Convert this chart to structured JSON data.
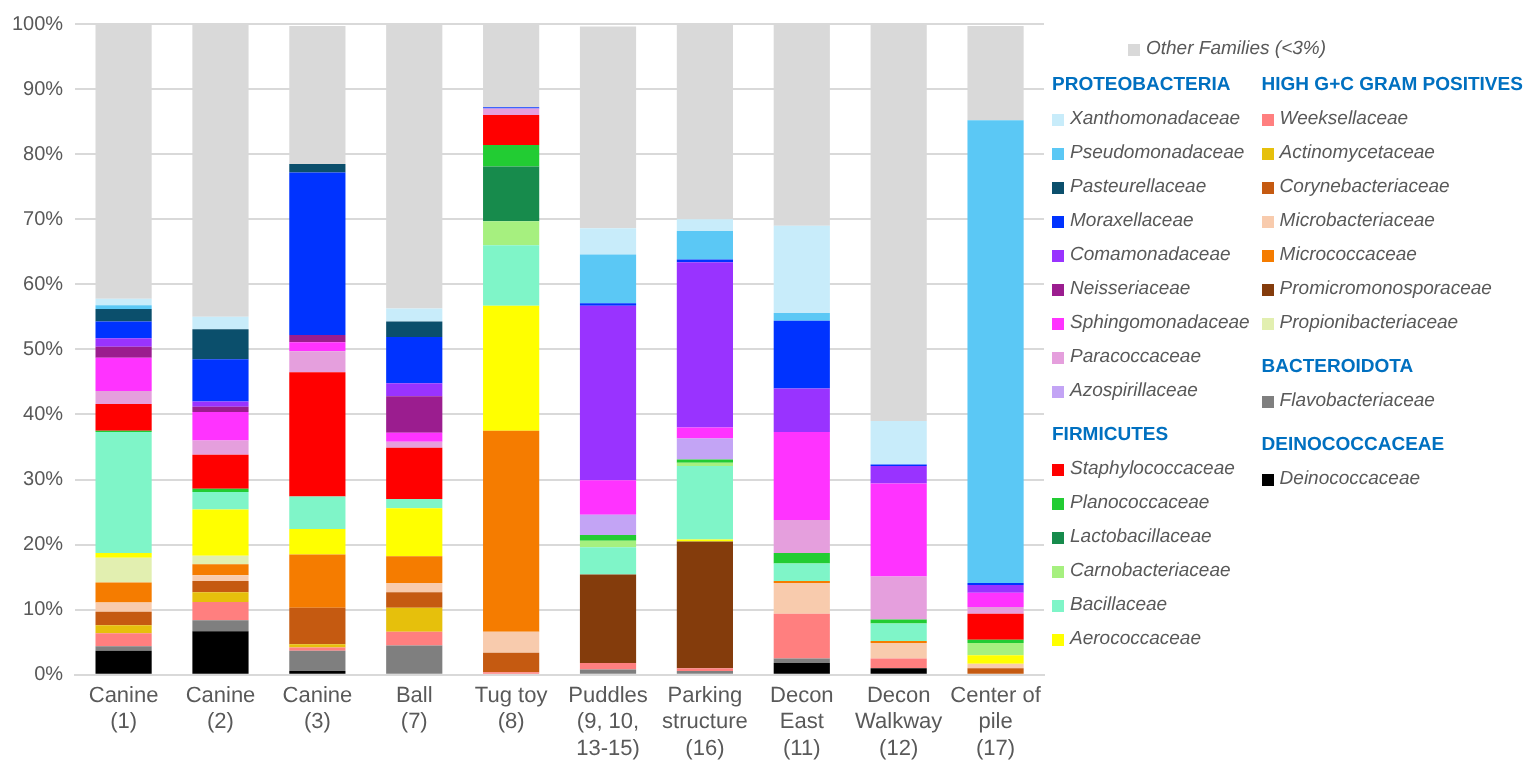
{
  "chart_data": {
    "type": "bar",
    "stacked": true,
    "categories": [
      "Canine\n(1)",
      "Canine\n(2)",
      "Canine\n(3)",
      "Ball\n(7)",
      "Tug toy\n(8)",
      "Puddles\n(9, 10,\n13-15)",
      "Parking\nstructure\n(16)",
      "Decon\nEast\n(11)",
      "Decon\nWalkway\n(12)",
      "Center of\npile\n(17)"
    ],
    "ylim": [
      0,
      100
    ],
    "yticks": [
      {
        "value": 0,
        "label": "0%"
      },
      {
        "value": 10,
        "label": "10%"
      },
      {
        "value": 20,
        "label": "20%"
      },
      {
        "value": 30,
        "label": "30%"
      },
      {
        "value": 40,
        "label": "40%"
      },
      {
        "value": 50,
        "label": "50%"
      },
      {
        "value": 60,
        "label": "60%"
      },
      {
        "value": 70,
        "label": "70%"
      },
      {
        "value": 80,
        "label": "80%"
      },
      {
        "value": 90,
        "label": "90%"
      },
      {
        "value": 100,
        "label": "100%"
      }
    ],
    "grid": "y",
    "legend": "right",
    "annotations": [
      "PROTEOBACTERIA",
      "HIGH G+C GRAM POSITIVES",
      "FIRMICUTES",
      "BACTEROIDOTA",
      "DEINOCOCCACEAE"
    ],
    "series": [
      {
        "name": "Deinococcaceae",
        "color": "#000000",
        "values": [
          3.7,
          6.7,
          0.6,
          0,
          0,
          0,
          0,
          1.8,
          1.0,
          0
        ]
      },
      {
        "name": "Flavobacteriaceae",
        "color": "#7f7f7f",
        "values": [
          0.7,
          1.7,
          3.1,
          4.5,
          0,
          0.8,
          0.6,
          0.7,
          0,
          0
        ]
      },
      {
        "name": "Weeksellaceae",
        "color": "#ff7f7f",
        "values": [
          2.0,
          2.8,
          0.5,
          2.1,
          0.4,
          1.0,
          0.4,
          6.9,
          1.5,
          0
        ]
      },
      {
        "name": "Actinomycetaceae",
        "color": "#e6c00c",
        "values": [
          1.2,
          1.5,
          0.5,
          3.7,
          0,
          0,
          0,
          0,
          0,
          0
        ]
      },
      {
        "name": "Corynebacteriaceae",
        "color": "#c55a11",
        "values": [
          2.1,
          1.7,
          5.6,
          2.4,
          3.0,
          0,
          0,
          0,
          0,
          1.0
        ]
      },
      {
        "name": "Microbacteriaceae",
        "color": "#f8cbad",
        "values": [
          1.4,
          0.9,
          0,
          1.4,
          3.2,
          null,
          0,
          4.7,
          2.4,
          0.7
        ]
      },
      {
        "name": "Micrococcaceae",
        "color": "#f57c00",
        "values": [
          3.1,
          1.7,
          8.2,
          4.1,
          30.9,
          0,
          0,
          0.3,
          0.3,
          0
        ]
      },
      {
        "name": "Promicromonosporaceae",
        "color": "#843c0c",
        "values": [
          0,
          0,
          0,
          0,
          0,
          13.6,
          19.5,
          0,
          0,
          0
        ]
      },
      {
        "name": "Propionibacteriaceae",
        "color": "#e2efb0",
        "values": [
          3.8,
          1.3,
          0,
          0,
          0,
          0,
          0,
          0,
          0,
          0
        ]
      },
      {
        "name": "Aerococcaceae",
        "color": "#ffff00",
        "values": [
          0.7,
          7.1,
          3.9,
          7.4,
          19.2,
          0,
          0.3,
          0,
          0,
          1.3
        ]
      },
      {
        "name": "Bacillaceae",
        "color": "#7ff5c8",
        "values": [
          18.6,
          2.7,
          5.0,
          1.4,
          9.3,
          4.2,
          11.3,
          2.7,
          2.7,
          0
        ]
      },
      {
        "name": "Carnobacteriaceae",
        "color": "#a6f07f",
        "values": [
          0,
          0,
          0,
          0,
          3.7,
          1.0,
          0.5,
          0,
          0,
          1.9
        ]
      },
      {
        "name": "Lactobacillaceae",
        "color": "#178b4c",
        "values": [
          0,
          0,
          0,
          0,
          8.4,
          0,
          0,
          0,
          0,
          0
        ]
      },
      {
        "name": "Planococcaceae",
        "color": "#22cc33",
        "values": [
          0.2,
          0.5,
          0,
          0,
          3.3,
          0.9,
          0.5,
          1.6,
          0.6,
          0.5
        ]
      },
      {
        "name": "Staphylococcaceae",
        "color": "#ff0000",
        "values": [
          4.1,
          5.2,
          19.1,
          7.9,
          4.6,
          0,
          0,
          0,
          0,
          4.0
        ]
      },
      {
        "name": "Azospirillaceae",
        "color": "#c3a4f5",
        "values": [
          0,
          0,
          0,
          0,
          0,
          3.1,
          3.2,
          0,
          0,
          0
        ]
      },
      {
        "name": "Paracoccaceae",
        "color": "#e59fdd",
        "values": [
          2.0,
          2.2,
          3.2,
          0.9,
          1.0,
          0,
          0,
          5.1,
          6.6,
          1.0
        ]
      },
      {
        "name": "Sphingomonadaceae",
        "color": "#ff33ff",
        "values": [
          5.1,
          4.4,
          1.4,
          1.4,
          0,
          5.3,
          1.7,
          13.5,
          14.3,
          2.2
        ]
      },
      {
        "name": "Neisseriaceae",
        "color": "#9b1d8f",
        "values": [
          1.7,
          0.8,
          1.1,
          5.6,
          0,
          0,
          0,
          0,
          0,
          0
        ]
      },
      {
        "name": "Comamonadaceae",
        "color": "#9933ff",
        "values": [
          1.3,
          0.8,
          0,
          2.0,
          0,
          26.8,
          25.4,
          6.7,
          2.7,
          1.2
        ]
      },
      {
        "name": "Moraxellaceae",
        "color": "#0033ff",
        "values": [
          2.6,
          6.5,
          25.0,
          7.1,
          0.2,
          0.4,
          0.4,
          10.4,
          0.2,
          0.3
        ]
      },
      {
        "name": "Pasteurellaceae",
        "color": "#0b4f6c",
        "values": [
          1.9,
          4.6,
          1.3,
          2.4,
          0,
          0,
          0,
          0,
          0,
          0
        ]
      },
      {
        "name": "Pseudomonadaceae",
        "color": "#5bc8f5",
        "values": [
          0.6,
          0,
          0,
          0,
          0,
          7.5,
          4.4,
          1.2,
          0,
          71.1
        ]
      },
      {
        "name": "Xanthomonadaceae",
        "color": "#c8ecfa",
        "values": [
          1.0,
          1.9,
          null,
          2.0,
          0,
          4.0,
          1.8,
          13.4,
          6.7,
          null
        ]
      },
      {
        "name": "Other Families (<3%)",
        "color": "#d9d9d9",
        "values": [
          42.2,
          45.0,
          21.2,
          43.7,
          12.8,
          31.0,
          30.0,
          31.0,
          61.0,
          14.5
        ]
      }
    ]
  }
}
